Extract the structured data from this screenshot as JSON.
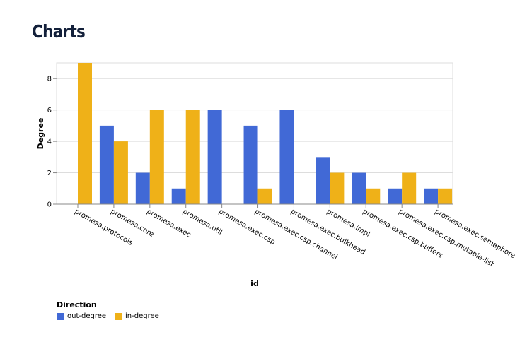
{
  "page": {
    "title": "Charts"
  },
  "chart_data": {
    "type": "bar",
    "title": "",
    "xlabel": "id",
    "ylabel": "Degree",
    "ylim": [
      0,
      9
    ],
    "yticks": [
      0,
      2,
      4,
      6,
      8
    ],
    "grid": true,
    "categories": [
      "promesa.protocols",
      "promesa.core",
      "promesa.exec",
      "promesa.util",
      "promesa.exec.csp",
      "promesa.exec.csp.channel",
      "promesa.exec.bulkhead",
      "promesa.impl",
      "promesa.exec.csp.buffers",
      "promesa.exec.csp.mutable-list",
      "promesa.exec.semaphore"
    ],
    "series": [
      {
        "name": "out-degree",
        "color": "#4169d6",
        "values": [
          0,
          5,
          2,
          1,
          6,
          5,
          6,
          3,
          2,
          1,
          1
        ]
      },
      {
        "name": "in-degree",
        "color": "#efb118",
        "values": [
          9,
          4,
          6,
          6,
          0,
          1,
          0,
          2,
          1,
          2,
          1
        ]
      }
    ],
    "legend": {
      "title": "Direction",
      "placement": "bottom-left"
    }
  }
}
